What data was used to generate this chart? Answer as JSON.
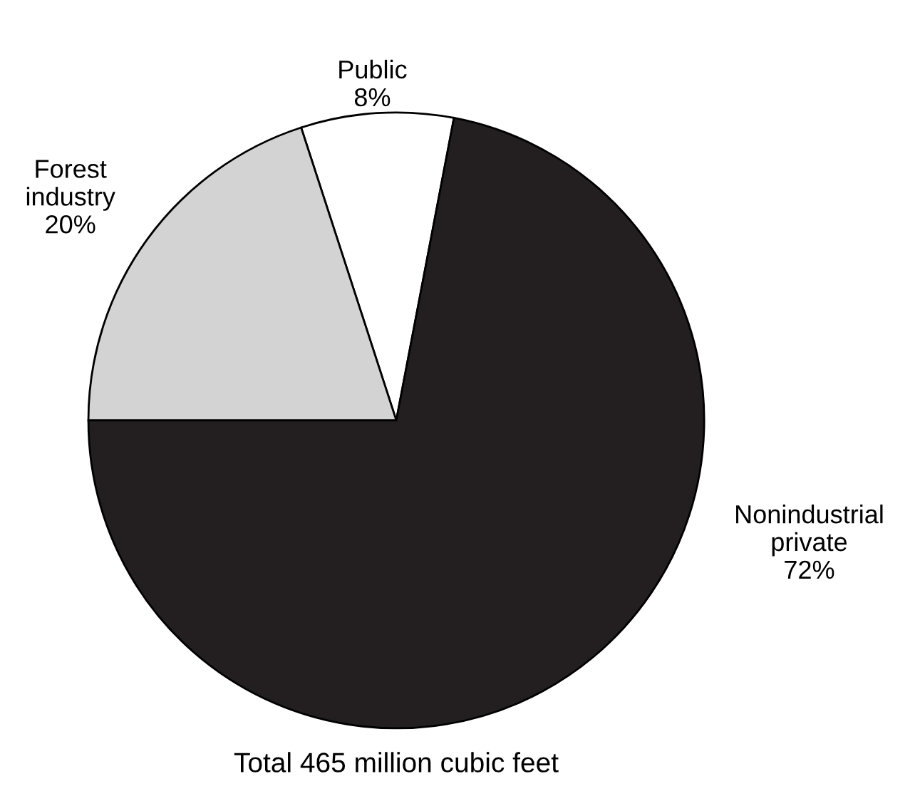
{
  "chart_data": {
    "type": "pie",
    "categories": [
      "Public",
      "Forest\nindustry",
      "Nonindustrial\nprivate"
    ],
    "values": [
      8,
      20,
      72
    ],
    "value_labels": [
      "8%",
      "20%",
      "72%"
    ],
    "colors": [
      "#ffffff",
      "#d3d3d3",
      "#231f20"
    ],
    "annotations": [
      "Total 465 million cubic feet"
    ]
  }
}
